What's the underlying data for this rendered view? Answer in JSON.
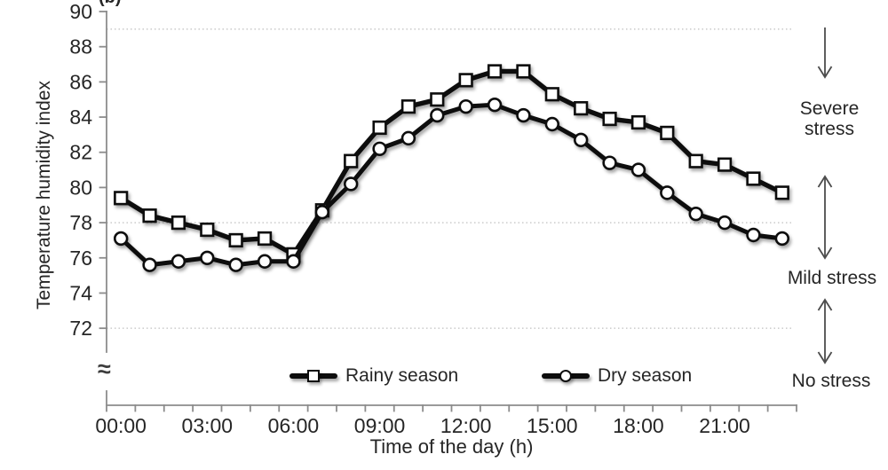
{
  "figure_label": "(b)",
  "axis_break_symbol": "≈",
  "colors": {
    "series_line": "#0d0d0d",
    "marker_fill": "#ffffff",
    "axis": "#8c8c8c",
    "gridline": "#bfbfbf",
    "text": "#262626",
    "arrow": "#4d4d4d",
    "background": "#ffffff"
  },
  "chart_data": {
    "type": "line",
    "title": "(b)",
    "xlabel": "Time of the day (h)",
    "ylabel": "Temperature humidity index",
    "categories_hours": [
      0,
      1,
      2,
      3,
      4,
      5,
      6,
      7,
      8,
      9,
      10,
      11,
      12,
      13,
      14,
      15,
      16,
      17,
      18,
      19,
      20,
      21,
      22,
      23
    ],
    "x_major_ticks": [
      {
        "hour": 0,
        "label": "00:00"
      },
      {
        "hour": 3,
        "label": "03:00"
      },
      {
        "hour": 6,
        "label": "06:00"
      },
      {
        "hour": 9,
        "label": "09:00"
      },
      {
        "hour": 12,
        "label": "12:00"
      },
      {
        "hour": 15,
        "label": "15:00"
      },
      {
        "hour": 18,
        "label": "18:00"
      },
      {
        "hour": 21,
        "label": "21:00"
      }
    ],
    "yticks": [
      72,
      74,
      76,
      78,
      80,
      82,
      84,
      86,
      88,
      90
    ],
    "ylim_visible": [
      72,
      90
    ],
    "y_axis_break_below": 72,
    "gridlines_at": [
      89,
      78,
      72
    ],
    "grid_style": "dotted horizontal threshold lines",
    "legend_position": "bottom inside plot",
    "series": [
      {
        "name": "Rainy season",
        "marker": "square",
        "color": "#0d0d0d",
        "values": [
          79.4,
          78.4,
          78.0,
          77.6,
          77.0,
          77.1,
          76.2,
          78.7,
          81.5,
          83.4,
          84.6,
          85.0,
          86.1,
          86.6,
          86.6,
          85.3,
          84.5,
          83.9,
          83.7,
          83.1,
          81.5,
          81.3,
          80.5,
          79.7
        ]
      },
      {
        "name": "Dry season",
        "marker": "circle",
        "color": "#0d0d0d",
        "values": [
          77.1,
          75.6,
          75.8,
          76.0,
          75.6,
          75.8,
          75.8,
          78.6,
          80.2,
          82.2,
          82.8,
          84.1,
          84.6,
          84.7,
          84.1,
          83.6,
          82.7,
          81.4,
          81.0,
          79.7,
          78.5,
          78.0,
          77.3,
          77.1
        ]
      }
    ],
    "annotations": [
      {
        "label": "Severe stress",
        "arrow_style": "single-down",
        "zone": "above 89"
      },
      {
        "label": "Mild stress",
        "arrow_style": "double",
        "zone": "78 to 89"
      },
      {
        "label": "No stress",
        "arrow_style": "double",
        "zone": "below 72"
      }
    ]
  }
}
